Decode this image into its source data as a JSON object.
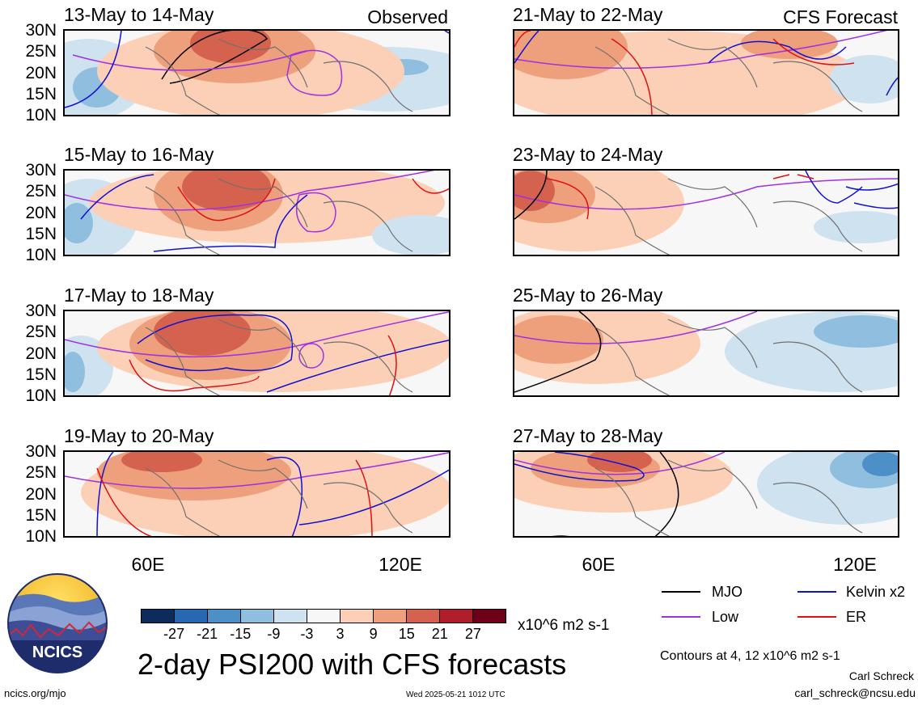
{
  "panels": [
    {
      "title": "13-May to 14-May",
      "corner_label": "Observed"
    },
    {
      "title": "15-May to 16-May",
      "corner_label": ""
    },
    {
      "title": "17-May to 18-May",
      "corner_label": ""
    },
    {
      "title": "19-May to 20-May",
      "corner_label": ""
    },
    {
      "title": "21-May to 22-May",
      "corner_label": "CFS Forecast"
    },
    {
      "title": "23-May to 24-May",
      "corner_label": ""
    },
    {
      "title": "25-May to 26-May",
      "corner_label": ""
    },
    {
      "title": "27-May to 28-May",
      "corner_label": ""
    }
  ],
  "lat_labels": [
    "30N",
    "25N",
    "20N",
    "15N",
    "10N"
  ],
  "lon_labels": [
    "60E",
    "120E"
  ],
  "legend": {
    "mjo": "MJO",
    "kelvin": "Kelvin x2",
    "low": "Low",
    "er": "ER"
  },
  "colors": {
    "mjo": "#000000",
    "kelvin": "#1010d0",
    "low": "#a030e0",
    "er": "#e01010"
  },
  "colorbar": {
    "labels": [
      "-27",
      "-21",
      "-15",
      "-9",
      "-3",
      "3",
      "9",
      "15",
      "21",
      "27"
    ],
    "colors": [
      "#0d2c5c",
      "#2669b0",
      "#4d90c8",
      "#8fbedf",
      "#cfe2f0",
      "#f7f7f7",
      "#fbd0b6",
      "#eea07c",
      "#d4624f",
      "#b01e2c",
      "#6e0018"
    ],
    "units": "x10^6 m2 s-1"
  },
  "main_title": "2-day PSI200 with CFS forecasts",
  "contour_note": "Contours at 4, 12 x10^6 m2 s-1",
  "author": "Carl Schreck",
  "email": "carl_schreck@ncsu.edu",
  "website": "ncics.org/mjo",
  "timestamp": "Wed 2025-05-21 1012 UTC",
  "logo_text": "NCICS"
}
